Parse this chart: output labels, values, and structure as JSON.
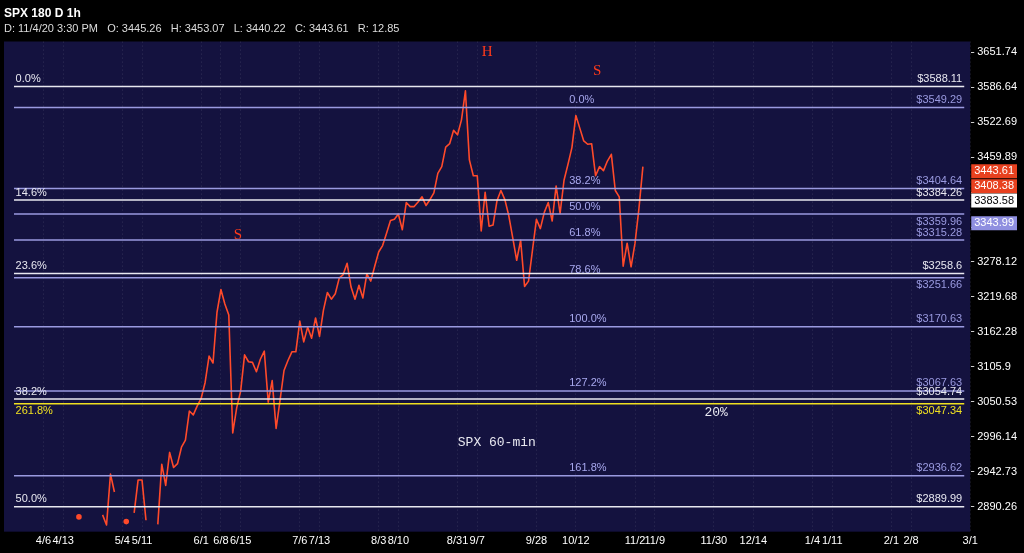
{
  "chart_data": {
    "type": "line",
    "title": "SPX 180 D 1h",
    "subtitle": "D: 11/4/20 3:30 PM   O: 3445.26   H: 3453.07   L: 3440.22   C: 3443.61   R: 12.85",
    "categories": [
      null,
      null,
      null,
      null,
      null,
      null,
      null,
      null,
      null,
      null,
      "4/6",
      null,
      null,
      null,
      null,
      "4/13",
      null,
      null,
      null,
      null,
      null,
      null,
      null,
      null,
      null,
      null,
      null,
      null,
      null,
      null,
      "5/4",
      null,
      null,
      null,
      null,
      "5/11",
      null,
      null,
      null,
      null,
      null,
      null,
      null,
      null,
      null,
      null,
      null,
      null,
      null,
      null,
      "6/1",
      null,
      null,
      null,
      null,
      "6/8",
      null,
      null,
      null,
      null,
      "6/15",
      null,
      null,
      null,
      null,
      null,
      null,
      null,
      null,
      null,
      null,
      null,
      null,
      null,
      null,
      "7/6",
      null,
      null,
      null,
      null,
      "7/13",
      null,
      null,
      null,
      null,
      null,
      null,
      null,
      null,
      null,
      null,
      null,
      null,
      null,
      null,
      "8/3",
      null,
      null,
      null,
      null,
      "8/10",
      null,
      null,
      null,
      null,
      null,
      null,
      null,
      null,
      null,
      null,
      null,
      null,
      null,
      null,
      "8/31",
      null,
      null,
      null,
      null,
      "9/7",
      null,
      null,
      null,
      null,
      null,
      null,
      null,
      null,
      null,
      null,
      null,
      null,
      null,
      null,
      "9/28",
      null,
      null,
      null,
      null,
      null,
      null,
      null,
      null,
      null,
      "10/12",
      null,
      null,
      null,
      null,
      null,
      null,
      null,
      null,
      null,
      null,
      null,
      null,
      null,
      null,
      "11/2",
      null,
      null,
      null,
      null,
      "11/9",
      null,
      null,
      null,
      null,
      null,
      null,
      null,
      null,
      null,
      null,
      null,
      null,
      null,
      null,
      "11/30",
      null,
      null,
      null,
      null,
      null,
      null,
      null,
      null,
      null,
      "12/14",
      null,
      null,
      null,
      null,
      null,
      null,
      null,
      null,
      null,
      null,
      null,
      null,
      null,
      null,
      "1/4",
      null,
      null,
      null,
      null,
      "1/11",
      null,
      null,
      null,
      null,
      null,
      null,
      null,
      null,
      null,
      null,
      null,
      null,
      null,
      null,
      "2/1",
      null,
      null,
      null,
      null,
      "2/8",
      null,
      null,
      null,
      null,
      null,
      null,
      null,
      null,
      null,
      null,
      null,
      null,
      null,
      null,
      "3/1"
    ],
    "series": [
      {
        "color": "#ff4a2a",
        "values": [
          null,
          null,
          null,
          null,
          null,
          null,
          null,
          null,
          null,
          null,
          null,
          null,
          null,
          null,
          null,
          null,
          null,
          null,
          null,
          2875,
          null,
          null,
          null,
          null,
          null,
          2878,
          2863,
          2939,
          2912,
          null,
          null,
          2868,
          null,
          2881,
          2930,
          2930,
          2870,
          null,
          null,
          2864,
          2954,
          2922,
          2972,
          2949,
          2955,
          2980,
          2991,
          3036,
          3030,
          3044,
          3056,
          3081,
          3123,
          3112,
          3194,
          3232,
          3208,
          3190,
          3002,
          3041,
          3067,
          3125,
          3114,
          3113,
          3098,
          3118,
          3131,
          3050,
          3084,
          3009,
          3053,
          3100,
          3116,
          3130,
          3130,
          3180,
          3146,
          3170,
          3152,
          3185,
          3155,
          3198,
          3227,
          3216,
          3225,
          3251,
          3257,
          3276,
          3236,
          3216,
          3239,
          3218,
          3258,
          3246,
          3271,
          3295,
          3306,
          3327,
          3349,
          3351,
          3360,
          3333,
          3380,
          3373,
          3373,
          3381,
          3390,
          3375,
          3385,
          3397,
          3431,
          3443,
          3478,
          3484,
          3508,
          3500,
          3527,
          3580,
          3455,
          3427,
          3427,
          3331,
          3398,
          3339,
          3341,
          3383,
          3401,
          3385,
          3357,
          3319,
          3281,
          3315,
          3237,
          3246,
          3298,
          3351,
          3335,
          3363,
          3380,
          3348,
          3409,
          3361,
          3419,
          3447,
          3477,
          3535,
          3512,
          3489,
          3483,
          3484,
          3427,
          3443,
          3436,
          3453,
          3465,
          3401,
          3390,
          3271,
          3310,
          3270,
          3310,
          3370,
          3443,
          null,
          null,
          null,
          null,
          null,
          null,
          null,
          null,
          null,
          null,
          null,
          null,
          null,
          null,
          null,
          null,
          null,
          null,
          null,
          null,
          null,
          null,
          null,
          null,
          null,
          null,
          null,
          null,
          null,
          null,
          null,
          null,
          null,
          null,
          null,
          null,
          null,
          null,
          null,
          null,
          null,
          null,
          null,
          null,
          null,
          null,
          null,
          null,
          null,
          null,
          null,
          null,
          null,
          null,
          null,
          null,
          null,
          null,
          null,
          null,
          null,
          null,
          null,
          null,
          null,
          null,
          null,
          null,
          null,
          null,
          null,
          null,
          null,
          null,
          null,
          null,
          null,
          null,
          null,
          null,
          null,
          null,
          null
        ]
      }
    ],
    "log": true,
    "ylim": [
      2853,
      3672
    ],
    "yticks": [
      2890.26,
      2942.73,
      2996.14,
      3050.53,
      3105.9,
      3162.28,
      3219.68,
      3278.12,
      {
        "value": 3337.62,
        "label": null
      },
      {
        "value": 3398.21,
        "label": null
      },
      3459.89,
      3522.69,
      3586.64,
      3651.74
    ],
    "grid": "x",
    "legend": false,
    "ref_lines": [
      {
        "axis": "y",
        "value": 3588.11,
        "label": "$3588.11",
        "color": "#e8e8f0"
      },
      {
        "axis": "y",
        "value": 3549.29,
        "label": "$3549.29",
        "color": "#9a9ae0"
      },
      {
        "axis": "y",
        "value": 3404.64,
        "label": "$3404.64",
        "color": "#9a9ae0"
      },
      {
        "axis": "y",
        "value": 3384.26,
        "label": "$3384.26",
        "color": "#e8e8f0"
      },
      {
        "axis": "y",
        "value": 3359.96,
        "label": "$3359.96",
        "color": "#9a9ae0"
      },
      {
        "axis": "y",
        "value": 3315.28,
        "label": "$3315.28",
        "color": "#9a9ae0"
      },
      {
        "axis": "y",
        "value": 3258.6,
        "label": "$3258.6",
        "color": "#e8e8f0"
      },
      {
        "axis": "y",
        "value": 3251.66,
        "label": "$3251.66",
        "color": "#9a9ae0"
      },
      {
        "axis": "y",
        "value": 3170.63,
        "label": "$3170.63",
        "color": "#9a9ae0"
      },
      {
        "axis": "y",
        "value": 3067.63,
        "label": "$3067.63",
        "color": "#9a9ae0"
      },
      {
        "axis": "y",
        "value": 3054.74,
        "label": "$3054.74",
        "color": "#e8e8f0"
      },
      {
        "axis": "y",
        "value": 3047.34,
        "label": "$3047.34",
        "color": "#f0e020"
      },
      {
        "axis": "y",
        "value": 2936.62,
        "label": "$2936.62",
        "color": "#9a9ae0"
      },
      {
        "axis": "y",
        "value": 2889.99,
        "label": "$2889.99",
        "color": "#e8e8f0"
      }
    ],
    "annotations": [
      "0.0%",
      "14.6%",
      "23.6%",
      "38.2%",
      "261.8%",
      "50.0%",
      "0.0%",
      "38.2%",
      "50.0%",
      "61.8%",
      "78.6%",
      "100.0%",
      "127.2%",
      "161.8%",
      "H",
      "S",
      "S",
      "20%",
      "SPX 60-min",
      "3443.61",
      "3408.38",
      "3383.58",
      "3343.99"
    ]
  }
}
